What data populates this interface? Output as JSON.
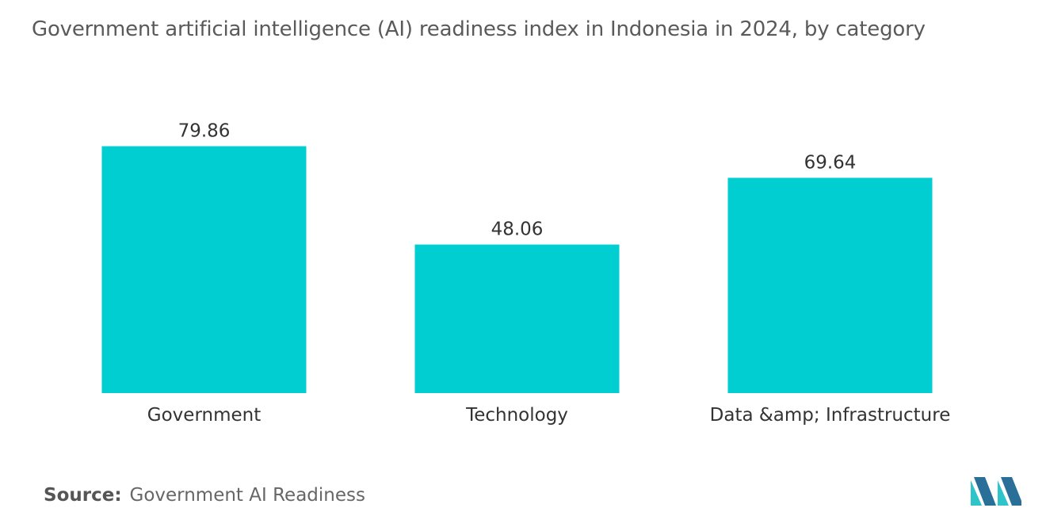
{
  "title": "Government artificial intelligence (AI) readiness index in Indonesia in 2024, by category",
  "source": {
    "label": "Source:",
    "value": "Government AI Readiness"
  },
  "colors": {
    "bar": "#00CED1",
    "logo_dark": "#2a6f97",
    "logo_light": "#2ec4c9"
  },
  "logo": {
    "icon": "mordor-intelligence-logo-icon"
  },
  "chart_data": {
    "type": "bar",
    "categories": [
      "Government",
      "Technology",
      "Data &amp; Infrastructure"
    ],
    "values": [
      79.86,
      48.06,
      69.64
    ],
    "value_labels": [
      "79.86",
      "48.06",
      "69.64"
    ],
    "title": "Government artificial intelligence (AI) readiness index in Indonesia in 2024, by category",
    "xlabel": "",
    "ylabel": "",
    "ylim": [
      0,
      80
    ],
    "grid": false,
    "legend": "none"
  }
}
